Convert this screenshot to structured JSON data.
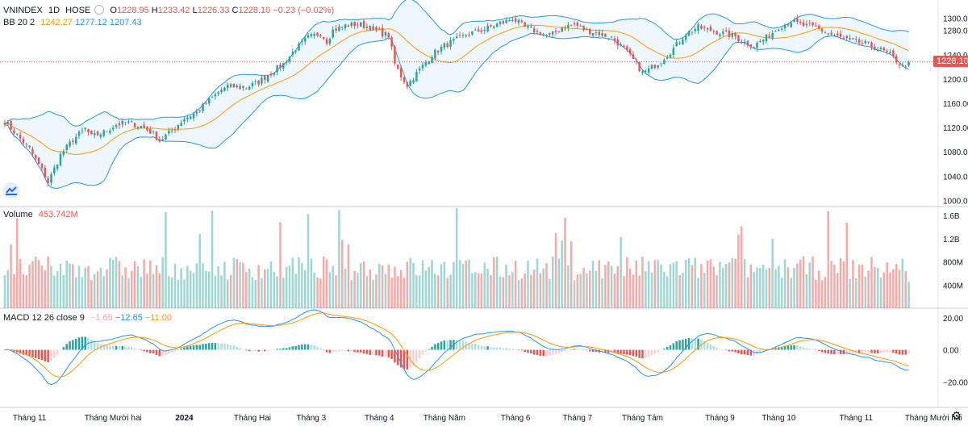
{
  "header": {
    "symbol": "VNINDEX",
    "interval": "1D",
    "exchange": "HOSE",
    "o_label": "O",
    "o_value": "1228.95",
    "h_label": "H",
    "h_value": "1233.42",
    "l_label": "L",
    "l_value": "1226.33",
    "c_label": "C",
    "c_value": "1228.10",
    "change": "−0.23 (−0.02%)"
  },
  "bb": {
    "label": "BB 20 2",
    "basis": "1242.27",
    "upper": "1277.12",
    "lower": "1207.43"
  },
  "volume": {
    "label": "Volume",
    "value": "453.742M"
  },
  "macd": {
    "label": "MACD 12 26 close 9",
    "hist": "−1.65",
    "macd": "−12.65",
    "signal": "−11.00"
  },
  "price_tag": "1228.10",
  "colors": {
    "up": "#26a69a",
    "down": "#ef5350",
    "bb_basis": "#ff9800",
    "bb_band": "#2196f3",
    "macd_line": "#2196f3",
    "signal_line": "#ff9800"
  },
  "chart_data": [
    {
      "type": "candlestick",
      "title": "VNINDEX 1D HOSE",
      "y_ticks": [
        "1300.00",
        "1280.00",
        "1240.00",
        "1200.00",
        "1160.00",
        "1120.00",
        "1080.00",
        "1040.00",
        "1000.00"
      ],
      "y_tick_values": [
        1300,
        1280,
        1240,
        1200,
        1160,
        1120,
        1080,
        1040,
        1000
      ],
      "y_tick_unlabeled": [
        1320
      ],
      "ylim": [
        990,
        1330
      ],
      "last_close": 1228.1,
      "anchors": [
        [
          0,
          1130
        ],
        [
          8,
          1085
        ],
        [
          12,
          1050
        ],
        [
          14,
          1030
        ],
        [
          18,
          1075
        ],
        [
          22,
          1100
        ],
        [
          26,
          1118
        ],
        [
          28,
          1105
        ],
        [
          32,
          1112
        ],
        [
          36,
          1125
        ],
        [
          40,
          1128
        ],
        [
          44,
          1122
        ],
        [
          48,
          1110
        ],
        [
          50,
          1098
        ],
        [
          54,
          1115
        ],
        [
          58,
          1135
        ],
        [
          62,
          1145
        ],
        [
          66,
          1165
        ],
        [
          70,
          1182
        ],
        [
          74,
          1190
        ],
        [
          78,
          1186
        ],
        [
          82,
          1195
        ],
        [
          86,
          1210
        ],
        [
          90,
          1225
        ],
        [
          94,
          1250
        ],
        [
          98,
          1268
        ],
        [
          102,
          1275
        ],
        [
          104,
          1262
        ],
        [
          106,
          1280
        ],
        [
          110,
          1288
        ],
        [
          114,
          1290
        ],
        [
          118,
          1285
        ],
        [
          122,
          1275
        ],
        [
          124,
          1272
        ],
        [
          126,
          1225
        ],
        [
          128,
          1205
        ],
        [
          130,
          1190
        ],
        [
          134,
          1215
        ],
        [
          138,
          1240
        ],
        [
          142,
          1255
        ],
        [
          146,
          1265
        ],
        [
          150,
          1275
        ],
        [
          154,
          1280
        ],
        [
          158,
          1288
        ],
        [
          162,
          1295
        ],
        [
          164,
          1300
        ],
        [
          168,
          1285
        ],
        [
          172,
          1278
        ],
        [
          176,
          1270
        ],
        [
          180,
          1285
        ],
        [
          184,
          1290
        ],
        [
          188,
          1280
        ],
        [
          192,
          1275
        ],
        [
          196,
          1268
        ],
        [
          200,
          1250
        ],
        [
          204,
          1225
        ],
        [
          206,
          1210
        ],
        [
          208,
          1215
        ],
        [
          212,
          1230
        ],
        [
          216,
          1250
        ],
        [
          220,
          1275
        ],
        [
          224,
          1285
        ],
        [
          228,
          1280
        ],
        [
          232,
          1275
        ],
        [
          236,
          1270
        ],
        [
          238,
          1262
        ],
        [
          242,
          1255
        ],
        [
          246,
          1268
        ],
        [
          250,
          1285
        ],
        [
          254,
          1295
        ],
        [
          258,
          1288
        ],
        [
          262,
          1285
        ],
        [
          266,
          1275
        ],
        [
          270,
          1268
        ],
        [
          274,
          1262
        ],
        [
          278,
          1258
        ],
        [
          282,
          1250
        ],
        [
          286,
          1240
        ],
        [
          288,
          1230
        ],
        [
          290,
          1220
        ],
        [
          292,
          1226
        ]
      ]
    },
    {
      "type": "bar",
      "title": "Volume",
      "y_ticks": [
        "1.6B",
        "1.2B",
        "800M",
        "400M"
      ],
      "y_tick_values": [
        1600,
        1200,
        800,
        400
      ],
      "unit": "M",
      "ylim": [
        0,
        1700
      ],
      "last_value_m": 453.742
    },
    {
      "type": "histogram+line",
      "title": "MACD 12 26 close 9",
      "y_ticks": [
        "20.00",
        "0.00",
        "−20.00"
      ],
      "y_tick_values": [
        20,
        0,
        -20
      ],
      "ylim": [
        -36,
        26
      ]
    }
  ],
  "x_axis": {
    "labels": [
      "Tháng 11",
      "Tháng Mười hai",
      "2024",
      "Tháng Hai",
      "Tháng 3",
      "Tháng 4",
      "Tháng Năm",
      "Tháng 6",
      "Tháng 7",
      "Tháng Tám",
      "Tháng 9",
      "Tháng 10",
      "Tháng 11",
      "Tháng Mười hai"
    ],
    "bar_index": [
      8,
      35,
      58,
      80,
      99,
      121,
      142,
      165,
      185,
      206,
      231,
      250,
      275,
      300
    ]
  }
}
